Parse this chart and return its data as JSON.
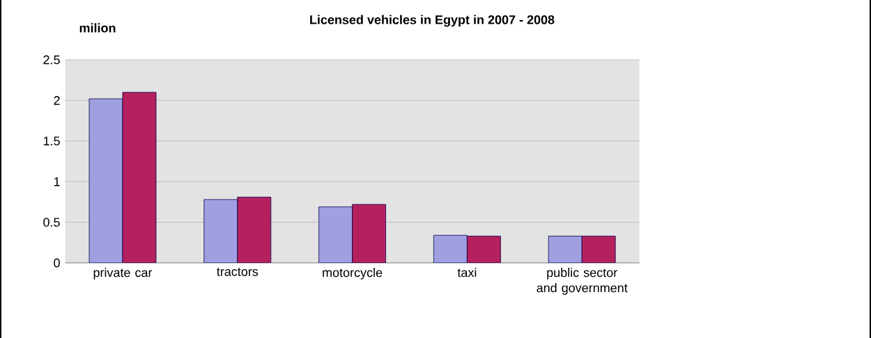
{
  "chart_data": {
    "type": "bar",
    "title": "Licensed vehicles in Egypt in 2007 - 2008",
    "ylabel": "milion",
    "categories": [
      "private car",
      "tractors",
      "motorcycle",
      "taxi",
      "public sector and government"
    ],
    "series": [
      {
        "color": "#a0a0e0",
        "values": [
          2.02,
          0.78,
          0.69,
          0.34,
          0.33
        ]
      },
      {
        "color": "#b5205e",
        "values": [
          2.1,
          0.81,
          0.72,
          0.33,
          0.33
        ]
      }
    ],
    "ylim": [
      0,
      2.5
    ],
    "yticks": [
      0,
      0.5,
      1,
      1.5,
      2,
      2.5
    ],
    "grid": "y",
    "legend": false
  }
}
